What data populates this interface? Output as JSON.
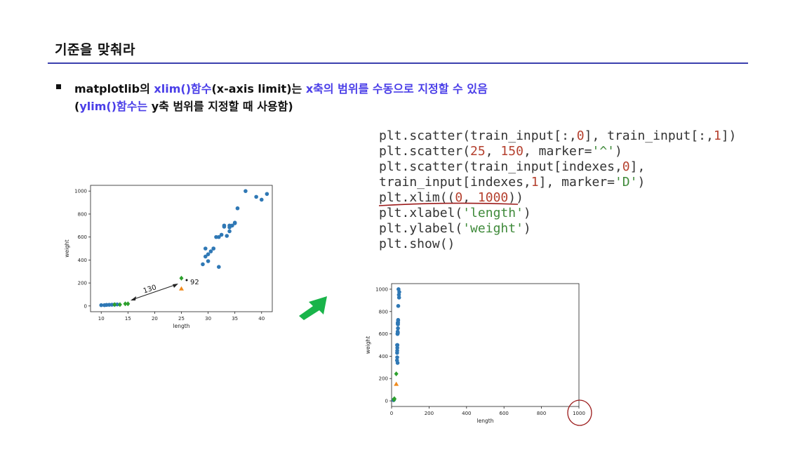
{
  "slide": {
    "title": "기준을 맞춰라",
    "bullet": {
      "t1": "matplotlib의 ",
      "t2": "xlim()함수",
      "t3": "(x-axis limit)는 ",
      "t4": "x축의 범위를 수동으로 지정할 수 있음",
      "t5": "(",
      "t6": "ylim()함수는",
      "t7": " y축 범위를 지정할 때 사용함)"
    }
  },
  "code": [
    [
      {
        "t": "plt.scatter(train_input[:,",
        "c": ""
      },
      {
        "t": "0",
        "c": "num"
      },
      {
        "t": "], train_input[:,",
        "c": ""
      },
      {
        "t": "1",
        "c": "num"
      },
      {
        "t": "])",
        "c": ""
      }
    ],
    [
      {
        "t": "plt.scatter(",
        "c": ""
      },
      {
        "t": "25",
        "c": "num"
      },
      {
        "t": ", ",
        "c": ""
      },
      {
        "t": "150",
        "c": "num"
      },
      {
        "t": ", marker=",
        "c": ""
      },
      {
        "t": "'^'",
        "c": "str"
      },
      {
        "t": ")",
        "c": ""
      }
    ],
    [
      {
        "t": "plt.scatter(train_input[indexes,",
        "c": ""
      },
      {
        "t": "0",
        "c": "num"
      },
      {
        "t": "],",
        "c": ""
      }
    ],
    [
      {
        "t": "train_input[indexes,",
        "c": ""
      },
      {
        "t": "1",
        "c": "num"
      },
      {
        "t": "], marker=",
        "c": ""
      },
      {
        "t": "'D'",
        "c": "str"
      },
      {
        "t": ")",
        "c": ""
      }
    ],
    [
      {
        "t": "plt.xlim((",
        "c": ""
      },
      {
        "t": "0",
        "c": "num"
      },
      {
        "t": ", ",
        "c": ""
      },
      {
        "t": "1000",
        "c": "num"
      },
      {
        "t": "))",
        "c": ""
      }
    ],
    [
      {
        "t": "plt.xlabel(",
        "c": ""
      },
      {
        "t": "'length'",
        "c": "str"
      },
      {
        "t": ")",
        "c": ""
      }
    ],
    [
      {
        "t": "plt.ylabel(",
        "c": ""
      },
      {
        "t": "'weight'",
        "c": "str"
      },
      {
        "t": ")",
        "c": ""
      }
    ],
    [
      {
        "t": "plt.show()",
        "c": ""
      }
    ]
  ],
  "annotations": {
    "dist1": "130",
    "dist2": "92"
  },
  "colors": {
    "blue": "#2f78b5",
    "orange": "#f08a1c",
    "green": "#2ca02c",
    "accent": "#4a3ee8",
    "rule": "#3b3fae",
    "red": "#9b1a1a",
    "arrow": "#19b44a"
  },
  "chart_data": [
    {
      "type": "scatter",
      "xlabel": "length",
      "ylabel": "weight",
      "xlim": [
        8,
        42
      ],
      "ylim": [
        -50,
        1050
      ],
      "xticks": [
        10,
        15,
        20,
        25,
        30,
        35,
        40
      ],
      "yticks": [
        0,
        200,
        400,
        600,
        800,
        1000
      ],
      "series": [
        {
          "marker": "circle",
          "color": "blue",
          "x": [
            10,
            10.6,
            11,
            11.5,
            12,
            12.5,
            13,
            29,
            29.5,
            29.5,
            30,
            30,
            30.5,
            31,
            31,
            31.5,
            32,
            32,
            32.5,
            33,
            33,
            33.5,
            34,
            34,
            34,
            34.5,
            35,
            35,
            35.5,
            37,
            39,
            40,
            41
          ],
          "y": [
            7,
            7,
            9,
            10,
            11,
            12,
            13,
            363,
            430,
            500,
            390,
            450,
            475,
            500,
            500,
            600,
            340,
            600,
            620,
            690,
            700,
            610,
            650,
            685,
            700,
            700,
            725,
            720,
            850,
            1000,
            950,
            925,
            975
          ]
        },
        {
          "marker": "triangle",
          "color": "orange",
          "x": [
            25
          ],
          "y": [
            150
          ]
        },
        {
          "marker": "diamond",
          "color": "green",
          "x": [
            12.5,
            13.5,
            14.5,
            15,
            25
          ],
          "y": [
            12,
            12,
            19,
            19,
            242
          ]
        }
      ]
    },
    {
      "type": "scatter",
      "xlabel": "length",
      "ylabel": "weight",
      "xlim": [
        0,
        1000
      ],
      "ylim": [
        -50,
        1050
      ],
      "xticks": [
        0,
        200,
        400,
        600,
        800,
        1000
      ],
      "yticks": [
        0,
        200,
        400,
        600,
        800,
        1000
      ],
      "series": [
        {
          "marker": "circle",
          "color": "blue",
          "x": [
            10,
            10.6,
            11,
            11.5,
            12,
            12.5,
            13,
            29,
            29.5,
            29.5,
            30,
            30,
            30.5,
            31,
            31,
            31.5,
            32,
            32,
            32.5,
            33,
            33,
            33.5,
            34,
            34,
            34,
            34.5,
            35,
            35,
            35.5,
            37,
            39,
            40,
            41
          ],
          "y": [
            7,
            7,
            9,
            10,
            11,
            12,
            13,
            363,
            430,
            500,
            390,
            450,
            475,
            500,
            500,
            600,
            340,
            600,
            620,
            690,
            700,
            610,
            650,
            685,
            700,
            700,
            725,
            720,
            850,
            1000,
            950,
            925,
            975
          ]
        },
        {
          "marker": "triangle",
          "color": "orange",
          "x": [
            25
          ],
          "y": [
            150
          ]
        },
        {
          "marker": "diamond",
          "color": "green",
          "x": [
            12.5,
            13.5,
            14.5,
            15,
            25
          ],
          "y": [
            12,
            12,
            19,
            19,
            242
          ]
        }
      ]
    }
  ]
}
